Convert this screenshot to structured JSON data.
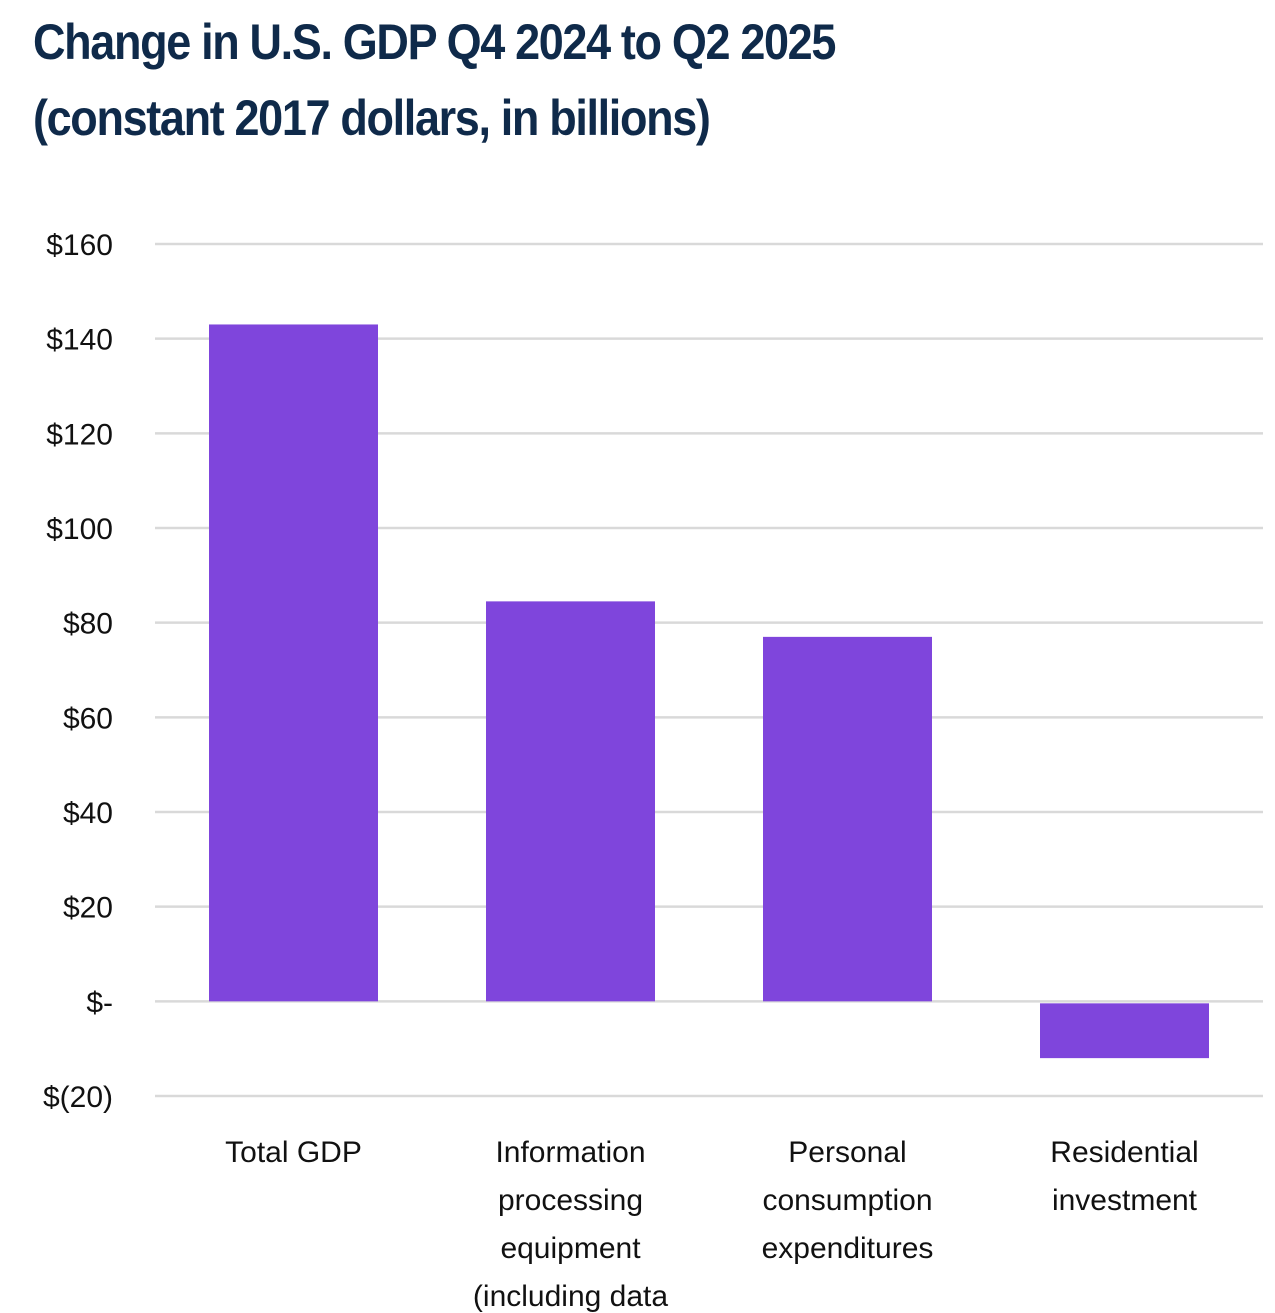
{
  "title_line1": "Change in U.S. GDP Q4 2024 to Q2 2025",
  "title_line2": "(constant 2017 dollars, in billions)",
  "chart_data": {
    "type": "bar",
    "title": "Change in U.S. GDP Q4 2024 to Q2 2025 (constant 2017 dollars, in billions)",
    "categories": [
      [
        "Total GDP"
      ],
      [
        "Information",
        "processing",
        "equipment",
        "(including data"
      ],
      [
        "Personal",
        "consumption",
        "expenditures"
      ],
      [
        "Residential",
        "investment"
      ]
    ],
    "values": [
      143,
      84.5,
      77,
      -12
    ],
    "ylim": [
      -20,
      160
    ],
    "yticks": [
      160,
      140,
      120,
      100,
      80,
      60,
      40,
      20,
      0,
      -20
    ],
    "ytick_labels": [
      "$160",
      "$140",
      "$120",
      "$100",
      "$80",
      "$60",
      "$40",
      "$20",
      "$-",
      "$(20)"
    ],
    "grid": true,
    "bar_color": "#7f45dc",
    "grid_color": "#d9d9d9"
  }
}
